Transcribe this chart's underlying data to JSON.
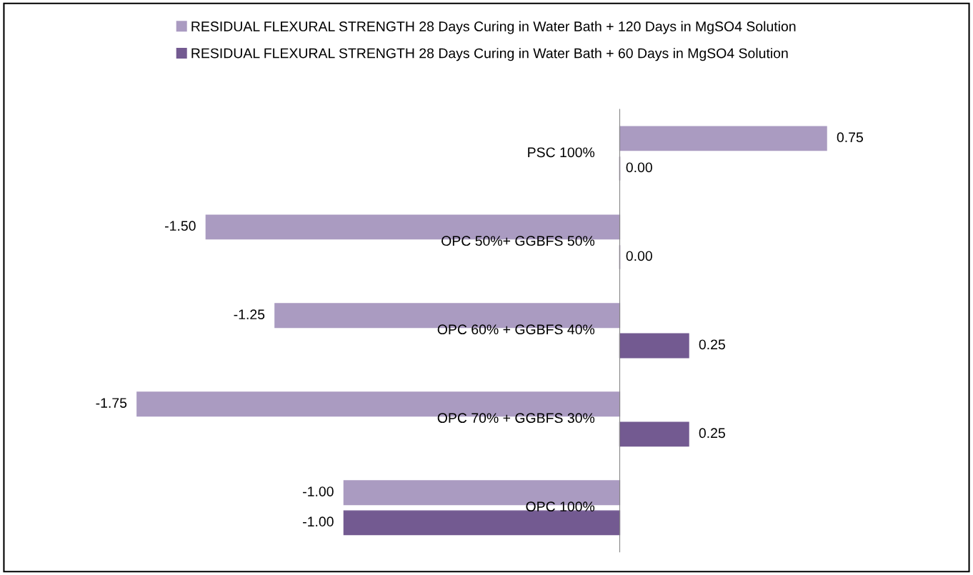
{
  "chart_data": {
    "type": "bar",
    "orientation": "horizontal",
    "categories": [
      "PSC 100%",
      "OPC 50%+ GGBFS 50%",
      "OPC 60% + GGBFS 40%",
      "OPC 70% + GGBFS 30%",
      "OPC 100%"
    ],
    "series": [
      {
        "name": "RESIDUAL FLEXURAL STRENGTH 28 Days Curing in Water Bath + 120 Days in MgSO4 Solution",
        "color": "#aa9bc1",
        "values": [
          0.75,
          -1.5,
          -1.25,
          -1.75,
          -1.0
        ],
        "value_labels": [
          "0.75",
          "-1.50",
          "-1.25",
          "-1.75",
          "-1.00"
        ]
      },
      {
        "name": "RESIDUAL FLEXURAL STRENGTH 28 Days Curing in Water Bath + 60 Days in MgSO4 Solution",
        "color": "#735a91",
        "values": [
          0.0,
          0.0,
          0.25,
          0.25,
          -1.0
        ],
        "value_labels": [
          "0.00",
          "0.00",
          "0.25",
          "0.25",
          "-1.00"
        ]
      }
    ],
    "legend": "top"
  }
}
